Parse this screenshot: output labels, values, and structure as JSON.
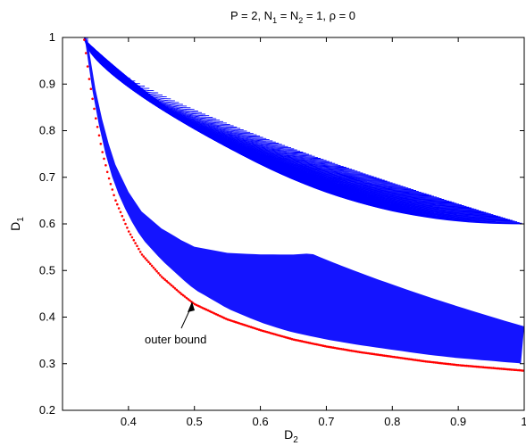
{
  "chart_data": {
    "type": "line",
    "title": {
      "p1": "P = 2, N",
      "s1": "1",
      "p2": " = N",
      "s2": "2",
      "p3": " = 1, ρ = 0"
    },
    "xlabel": {
      "base": "D",
      "sub": "2"
    },
    "ylabel": {
      "base": "D",
      "sub": "1"
    },
    "xlim": [
      0.3,
      1.0
    ],
    "ylim": [
      0.2,
      1.0
    ],
    "xticks": [
      "0.4",
      "0.5",
      "0.6",
      "0.7",
      "0.8",
      "0.9",
      "1"
    ],
    "yticks": [
      "0.2",
      "0.3",
      "0.4",
      "0.5",
      "0.6",
      "0.7",
      "0.8",
      "0.9",
      "1"
    ],
    "grid": false,
    "series": [
      {
        "style": "dotted",
        "color": "#ff0000",
        "x": [
          0.333,
          0.34,
          0.35,
          0.36,
          0.37,
          0.38,
          0.4,
          0.42,
          0.45,
          0.48,
          0.5,
          0.55,
          0.6,
          0.65,
          0.7,
          0.75,
          0.8,
          0.85,
          0.9,
          0.95,
          1.0
        ],
        "y": [
          0.995,
          0.915,
          0.83,
          0.757,
          0.7,
          0.652,
          0.585,
          0.535,
          0.487,
          0.45,
          0.428,
          0.395,
          0.372,
          0.352,
          0.337,
          0.325,
          0.315,
          0.305,
          0.297,
          0.291,
          0.285
        ]
      },
      {
        "style": "solid",
        "color": "#0000ff",
        "description_free": true,
        "start_x": 0.333,
        "start_y": 0.995,
        "end_x_range": [
          0.34,
          1.0
        ],
        "end_y_top": [
          0.98,
          0.6
        ],
        "end_y_bottom": 0.285
      }
    ],
    "annotations": [
      {
        "text": "outer bound",
        "x": 0.5,
        "y": 0.435
      }
    ]
  }
}
